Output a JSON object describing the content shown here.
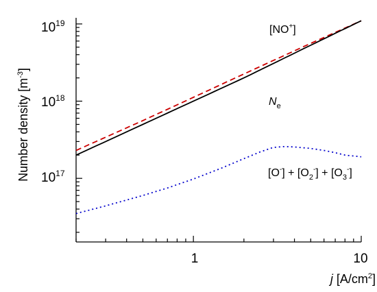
{
  "chart_data": {
    "type": "line",
    "xscale": "log",
    "yscale": "log",
    "xlim": [
      0.2,
      10
    ],
    "ylim": [
      1.5e+16,
      1.2e+19
    ],
    "grid": false,
    "legend": "none",
    "x_ticks": [
      {
        "value": 1,
        "label": "1"
      },
      {
        "value": 10,
        "label": "10"
      }
    ],
    "y_ticks": [
      {
        "value": 1e+17,
        "base": "10",
        "exp": "17"
      },
      {
        "value": 1e+18,
        "base": "10",
        "exp": "18"
      },
      {
        "value": 1e+19,
        "base": "10",
        "exp": "19"
      }
    ],
    "xlabel": {
      "italic": "j",
      "rest": " [A/cm",
      "sup": "2",
      "end": "]"
    },
    "ylabel": {
      "main": "Number density [m",
      "sup": "-3",
      "end": "]"
    },
    "series": [
      {
        "key": "no_plus",
        "color": "#cc0000",
        "dash": "8,5",
        "x": [
          0.2,
          0.5,
          1,
          2,
          5,
          10
        ],
        "y": [
          2.3e+17,
          5.6e+17,
          1.12e+18,
          2.25e+18,
          5.6e+18,
          1.1e+19
        ]
      },
      {
        "key": "ne",
        "color": "#000000",
        "dash": "",
        "x": [
          0.2,
          0.5,
          1,
          2,
          5,
          10
        ],
        "y": [
          2e+17,
          5e+17,
          1e+18,
          2e+18,
          5.3e+18,
          1.1e+19
        ]
      },
      {
        "key": "neg_ions",
        "color": "#0000cc",
        "dash": "2,4",
        "x": [
          0.2,
          0.3,
          0.5,
          0.7,
          1,
          1.5,
          2,
          2.5,
          3,
          3.5,
          4,
          5,
          6,
          7,
          8,
          10
        ],
        "y": [
          3.5e+16,
          4.4e+16,
          6e+16,
          7.5e+16,
          9.8e+16,
          1.38e+17,
          1.8e+17,
          2.2e+17,
          2.52e+17,
          2.58e+17,
          2.55e+17,
          2.44e+17,
          2.3e+17,
          2.15e+17,
          2e+17,
          1.9e+17
        ]
      }
    ],
    "annotations": {
      "no_plus": {
        "open": "[NO",
        "sup": "+",
        "close": "]"
      },
      "ne": {
        "italic": "N",
        "sub": "e"
      },
      "neg_ions": {
        "p1": "[O",
        "s1": "-",
        "p2": "] + [O",
        "sub2": "2",
        "s2": "-",
        "p3": "] + [O",
        "sub3": "3",
        "s3": "-",
        "p4": "]"
      }
    }
  }
}
